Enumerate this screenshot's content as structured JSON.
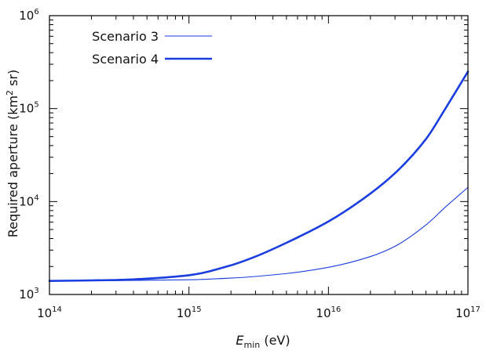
{
  "chart_data": {
    "type": "line",
    "xscale": "log",
    "yscale": "log",
    "xlim": [
      100000000000000.0,
      1e+17
    ],
    "ylim": [
      1000,
      1000000
    ],
    "xlabel": {
      "main": "E",
      "sub": "min",
      "tail": " (eV)"
    },
    "ylabel": {
      "head": "Required aperture (km",
      "sup": "2",
      "tail": " sr)"
    },
    "xticks": [
      {
        "value": 100000000000000.0,
        "base": "10",
        "exp": "14"
      },
      {
        "value": 1000000000000000.0,
        "base": "10",
        "exp": "15"
      },
      {
        "value": 1e+16,
        "base": "10",
        "exp": "16"
      },
      {
        "value": 1e+17,
        "base": "10",
        "exp": "17"
      }
    ],
    "yticks": [
      {
        "value": 1000,
        "base": "10",
        "exp": "3"
      },
      {
        "value": 10000,
        "base": "10",
        "exp": "4"
      },
      {
        "value": 100000,
        "base": "10",
        "exp": "5"
      },
      {
        "value": 1000000,
        "base": "10",
        "exp": "6"
      }
    ],
    "grid": false,
    "legend_position": "top-left",
    "series": [
      {
        "name": "Scenario 3",
        "color": "#1a3de0",
        "style": "thin",
        "x": [
          100000000000000.0,
          300000000000000.0,
          1000000000000000.0,
          2000000000000000.0,
          5000000000000000.0,
          1e+16,
          2e+16,
          3e+16,
          5e+16,
          7e+16,
          1e+17
        ],
        "y": [
          1400,
          1410,
          1440,
          1500,
          1680,
          1960,
          2560,
          3300,
          5600,
          8900,
          14200
        ]
      },
      {
        "name": "Scenario 4",
        "color": "#1a3de0",
        "style": "thick",
        "x": [
          100000000000000.0,
          300000000000000.0,
          500000000000000.0,
          1000000000000000.0,
          2000000000000000.0,
          3000000000000000.0,
          5000000000000000.0,
          1e+16,
          2e+16,
          3e+16,
          5e+16,
          7e+16,
          1e+17
        ],
        "y": [
          1400,
          1430,
          1480,
          1610,
          2060,
          2560,
          3600,
          6100,
          12200,
          20200,
          47000,
          104000,
          250000
        ]
      }
    ]
  }
}
